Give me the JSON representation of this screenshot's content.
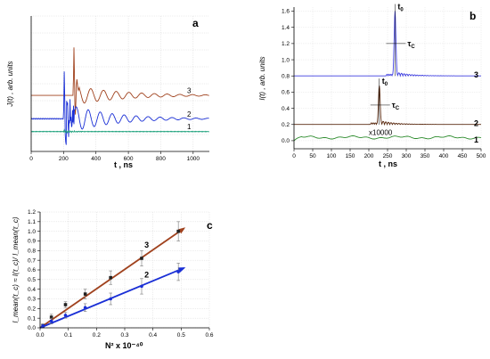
{
  "chart_data": [
    {
      "id": "a",
      "type": "line",
      "panel_label": "a",
      "xlabel": "t , ns",
      "ylabel": "J(t) , arb. units",
      "xlim": [
        0,
        1100
      ],
      "x_ticks": [
        "0",
        "200",
        "400",
        "600",
        "800",
        "1000"
      ],
      "series": [
        {
          "name": "3",
          "color": "#a0421e",
          "offset": 100,
          "style": "curve3"
        },
        {
          "name": "2",
          "color": "#1a2fd6",
          "offset": 0,
          "style": "curve2"
        },
        {
          "name": "1",
          "color": "#1aa07a",
          "offset": -55,
          "style": "curve1"
        }
      ],
      "ylim": [
        -140,
        440
      ]
    },
    {
      "id": "b",
      "type": "line",
      "panel_label": "b",
      "xlabel": "t , ns",
      "ylabel": "I(t) , arb. units",
      "xlim": [
        0,
        500
      ],
      "ylim": [
        -0.1,
        1.65
      ],
      "x_ticks": [
        "0",
        "50",
        "100",
        "150",
        "200",
        "250",
        "300",
        "350",
        "400",
        "450",
        "500"
      ],
      "y_ticks": [
        "0.0",
        "0.2",
        "0.4",
        "0.6",
        "0.8",
        "1.0",
        "1.2",
        "1.4",
        "1.6"
      ],
      "series": [
        {
          "name": "3",
          "color": "#3d3de0",
          "offset": 0.8,
          "peak_t": 270,
          "peak_h": 0.8
        },
        {
          "name": "2",
          "color": "#5a2a10",
          "offset": 0.2,
          "peak_t": 228,
          "peak_h": 0.48
        },
        {
          "name": "1",
          "color": "#2a8a2a",
          "offset": 0.0
        }
      ],
      "annotations": [
        {
          "text": "t",
          "sub": "0",
          "series": "3"
        },
        {
          "text": "τ",
          "sub": "C",
          "series": "3"
        },
        {
          "text": "t",
          "sub": "0",
          "series": "2"
        },
        {
          "text": "τ",
          "sub": "C",
          "series": "2"
        },
        {
          "text": "x10000",
          "series": "1"
        }
      ]
    },
    {
      "id": "c",
      "type": "scatter",
      "panel_label": "c",
      "xlabel": "N² x 10⁻⁴⁰",
      "ylabel": "I_mean(τ_c) ≈ I(τ_c)/ I_mean(τ_c)",
      "xlim": [
        0.0,
        0.6
      ],
      "ylim": [
        0.0,
        1.2
      ],
      "x_ticks": [
        "0.0",
        "0.1",
        "0.2",
        "0.3",
        "0.4",
        "0.5",
        "0.6"
      ],
      "y_ticks": [
        "0.0",
        "0.1",
        "0.2",
        "0.3",
        "0.4",
        "0.5",
        "0.6",
        "0.7",
        "0.8",
        "0.9",
        "1.0",
        "1.1",
        "1.2"
      ],
      "series": [
        {
          "name": "3",
          "color": "#a0421e",
          "marker": "square",
          "x": [
            0.01,
            0.04,
            0.09,
            0.16,
            0.25,
            0.36,
            0.49
          ],
          "y": [
            0.02,
            0.11,
            0.24,
            0.35,
            0.52,
            0.72,
            1.0
          ],
          "err": [
            0.02,
            0.03,
            0.03,
            0.05,
            0.07,
            0.08,
            0.1
          ],
          "fit": [
            [
              0.0,
              0.0
            ],
            [
              0.51,
              1.03
            ]
          ]
        },
        {
          "name": "2",
          "color": "#1a2fd6",
          "marker": "circle",
          "x": [
            0.01,
            0.04,
            0.09,
            0.16,
            0.25,
            0.36,
            0.49
          ],
          "y": [
            0.02,
            0.07,
            0.13,
            0.21,
            0.3,
            0.43,
            0.58
          ],
          "err": [
            0.02,
            0.03,
            0.03,
            0.04,
            0.06,
            0.08,
            0.09
          ],
          "fit": [
            [
              0.0,
              0.0
            ],
            [
              0.51,
              0.62
            ]
          ]
        }
      ]
    }
  ]
}
